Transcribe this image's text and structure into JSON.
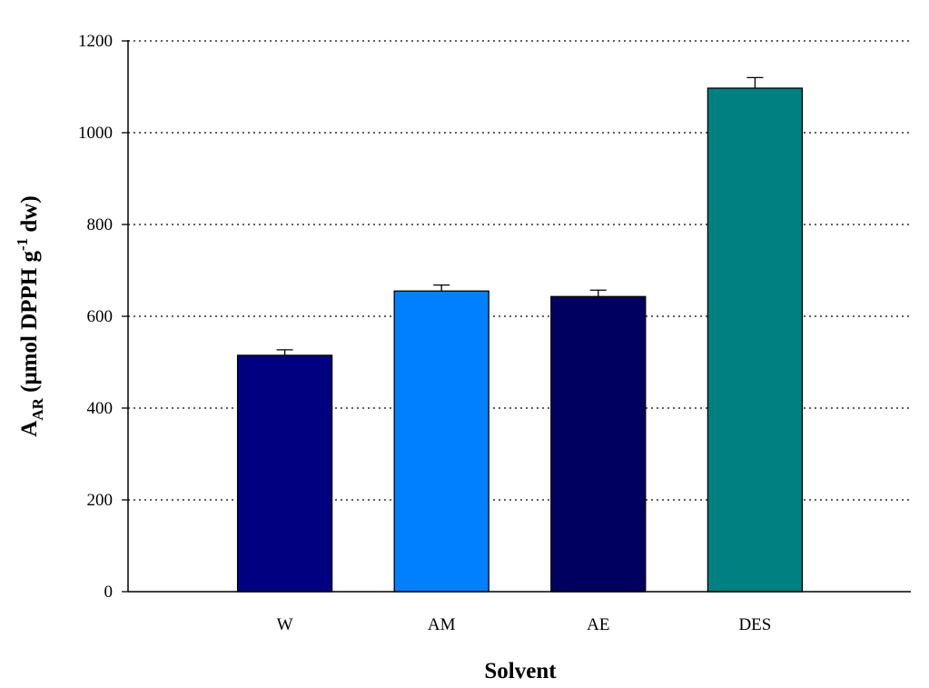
{
  "chart_data": {
    "type": "bar",
    "title": "",
    "categories": [
      "W",
      "AM",
      "AE",
      "DES"
    ],
    "series": [
      {
        "values": [
          515,
          655,
          643,
          1097
        ],
        "errors": [
          12,
          13,
          14,
          23
        ],
        "colors": [
          "#000080",
          "#0080ff",
          "#000060",
          "#008080"
        ]
      }
    ],
    "ylim": [
      0,
      1200
    ],
    "yticks": [
      0,
      200,
      400,
      600,
      800,
      1000,
      1200
    ],
    "xlabel": "Solvent",
    "ylabel": {
      "main": "A",
      "subscript": "AR",
      "middle": " (μmol DPPH g",
      "superscript": "-1",
      "end": " dw)"
    },
    "grid": "horizontal dotted",
    "legend": "none"
  }
}
